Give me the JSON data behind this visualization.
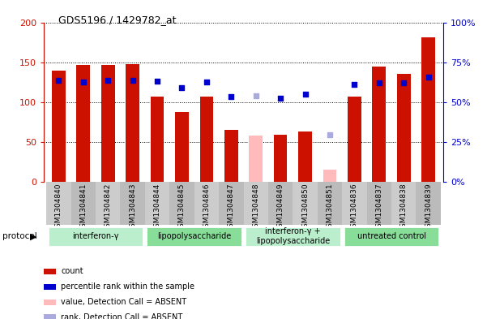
{
  "title": "GDS5196 / 1429782_at",
  "samples": [
    "GSM1304840",
    "GSM1304841",
    "GSM1304842",
    "GSM1304843",
    "GSM1304844",
    "GSM1304845",
    "GSM1304846",
    "GSM1304847",
    "GSM1304848",
    "GSM1304849",
    "GSM1304850",
    "GSM1304851",
    "GSM1304836",
    "GSM1304837",
    "GSM1304838",
    "GSM1304839"
  ],
  "count_values": [
    139,
    147,
    147,
    148,
    107,
    88,
    107,
    65,
    null,
    59,
    63,
    null,
    107,
    145,
    135,
    181
  ],
  "count_absent": [
    null,
    null,
    null,
    null,
    null,
    null,
    null,
    null,
    58,
    null,
    null,
    15,
    null,
    null,
    null,
    null
  ],
  "rank_values": [
    127,
    125,
    127,
    127,
    126,
    118,
    125,
    107,
    null,
    105,
    110,
    null,
    122,
    124,
    124,
    131
  ],
  "rank_absent": [
    null,
    null,
    null,
    null,
    null,
    null,
    null,
    null,
    108,
    null,
    null,
    59,
    null,
    null,
    null,
    null
  ],
  "protocols": [
    {
      "label": "interferon-γ",
      "start": 0,
      "end": 4,
      "color": "#bbeecc"
    },
    {
      "label": "lipopolysaccharide",
      "start": 4,
      "end": 8,
      "color": "#88dd99"
    },
    {
      "label": "interferon-γ +\nlipopolysaccharide",
      "start": 8,
      "end": 12,
      "color": "#bbeecc"
    },
    {
      "label": "untreated control",
      "start": 12,
      "end": 16,
      "color": "#88dd99"
    }
  ],
  "ylim_left": [
    0,
    200
  ],
  "ylim_right": [
    0,
    100
  ],
  "yticks_left": [
    0,
    50,
    100,
    150,
    200
  ],
  "yticks_right": [
    0,
    25,
    50,
    75,
    100
  ],
  "bar_color": "#cc1100",
  "bar_absent_color": "#ffbbbb",
  "rank_color": "#0000cc",
  "rank_absent_color": "#aaaadd",
  "left_tick_color": "#cc1100",
  "right_tick_color": "#0000cc",
  "bar_width": 0.55,
  "background_color": "#ffffff",
  "grid_color": "#000000",
  "xlabel_area_color": "#cccccc"
}
